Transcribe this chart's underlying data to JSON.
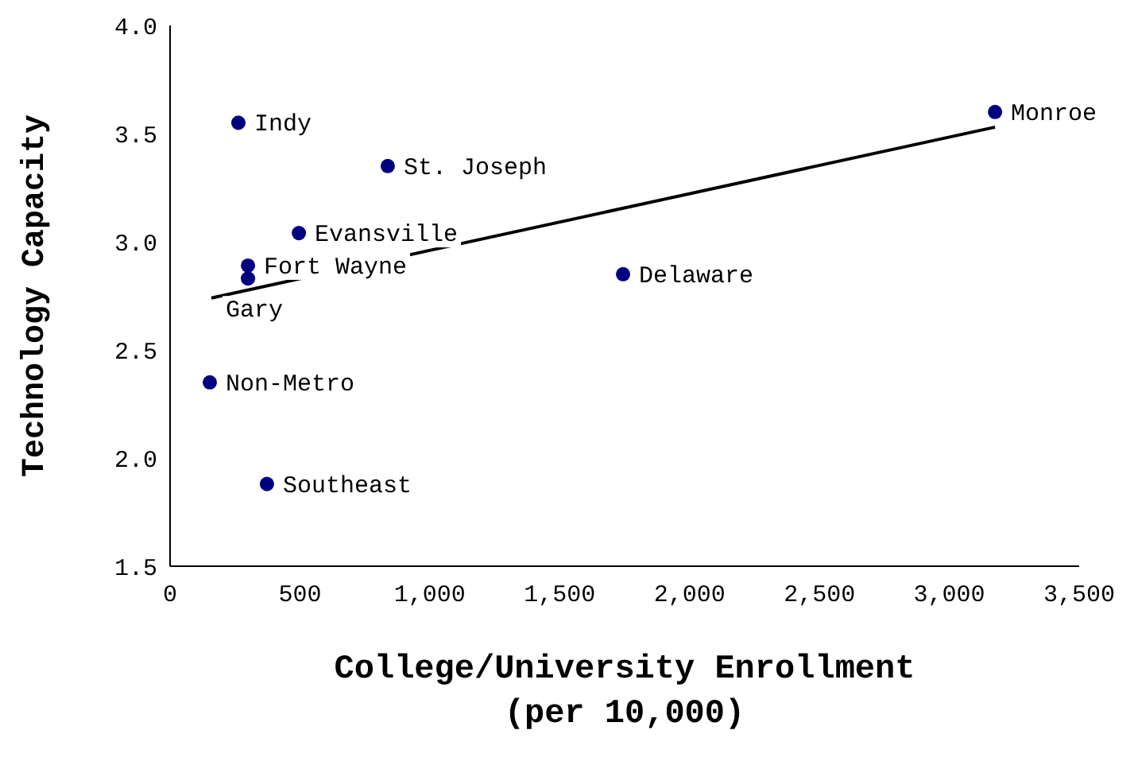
{
  "chart_data": {
    "type": "scatter",
    "xlabel": "College/University Enrollment\n(per 10,000)",
    "ylabel": "Technology Capacity",
    "xlim": [
      0,
      3500
    ],
    "ylim": [
      1.5,
      4
    ],
    "xticks": [
      0,
      500,
      {
        "value": 1000,
        "label": "1,000"
      },
      {
        "value": 1500,
        "label": "1,500"
      },
      {
        "value": 2000,
        "label": "2,000"
      },
      {
        "value": 2500,
        "label": "2,500"
      },
      {
        "value": 3000,
        "label": "3,000"
      },
      {
        "value": 3500,
        "label": "3,500"
      }
    ],
    "yticks": [
      {
        "value": 1.5,
        "label": "1.5"
      },
      {
        "value": 2,
        "label": "2.0"
      },
      {
        "value": 2.5,
        "label": "2.5"
      },
      {
        "value": 3,
        "label": "3.0"
      },
      {
        "value": 3.5,
        "label": "3.5"
      },
      {
        "value": 4,
        "label": "4.0"
      }
    ],
    "grid": false,
    "legend": false,
    "marker": "circle",
    "series": [
      {
        "type": "scatter",
        "color": "#000080",
        "x": [
          263,
          838,
          496,
          300,
          300,
          1744,
          3176,
          153,
          373
        ],
        "values": [
          3.55,
          3.35,
          3.04,
          2.89,
          2.83,
          2.85,
          3.6,
          2.35,
          1.88
        ]
      },
      {
        "type": "line",
        "color": "#000000",
        "x": [
          159,
          3176
        ],
        "values": [
          2.74,
          3.53
        ],
        "marker": "none"
      }
    ],
    "annotations": [
      {
        "text": "Indy",
        "x": 263,
        "y": 3.55
      },
      {
        "text": "St. Joseph",
        "x": 838,
        "y": 3.35
      },
      {
        "text": "Evansville",
        "x": 496,
        "y": 3.04
      },
      {
        "text": "Fort Wayne",
        "x": 300,
        "y": 2.89
      },
      {
        "text": "Gary",
        "x": 300,
        "y": 2.83
      },
      {
        "text": "Delaware",
        "x": 1744,
        "y": 2.85
      },
      {
        "text": "Monroe",
        "x": 3176,
        "y": 3.6
      },
      {
        "text": "Non-Metro",
        "x": 153,
        "y": 2.35
      },
      {
        "text": "Southeast",
        "x": 373,
        "y": 1.88
      }
    ]
  }
}
